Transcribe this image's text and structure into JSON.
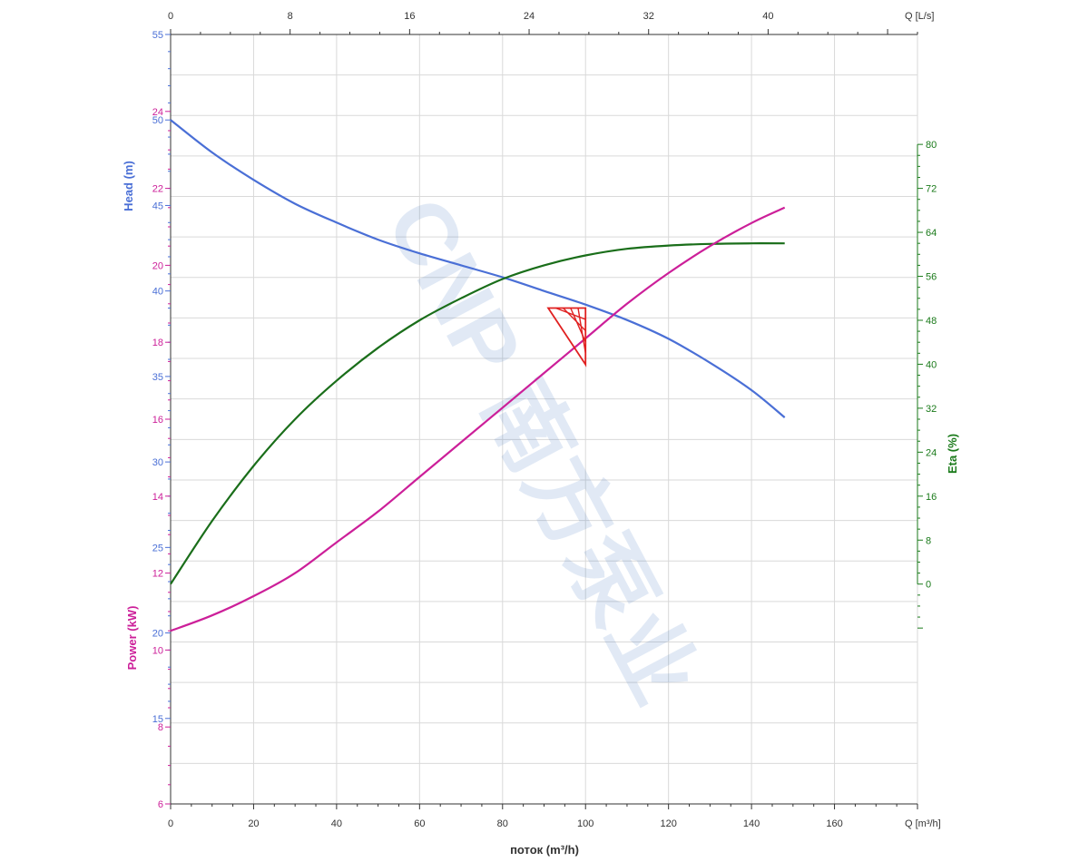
{
  "chart_data": {
    "type": "line",
    "watermark": "CNP 南方泵业",
    "x_axis_bottom": {
      "label": "поток (m³/h)",
      "unit_label": "Q [m³/h]",
      "range": [
        0,
        180
      ],
      "ticks": [
        0,
        20,
        40,
        60,
        80,
        100,
        120,
        140,
        160
      ]
    },
    "x_axis_top": {
      "unit_label": "Q [L/s]",
      "range": [
        0,
        50
      ],
      "ticks": [
        0,
        8,
        16,
        24,
        32,
        40
      ]
    },
    "head_axis": {
      "label": "Head (m)",
      "color": "#4a6fd6",
      "range": [
        10,
        55
      ],
      "ticks": [
        15,
        20,
        25,
        30,
        35,
        40,
        45,
        50,
        55
      ]
    },
    "power_axis": {
      "label": "Power (kW)",
      "color": "#cc1f99",
      "range": [
        6,
        26
      ],
      "ticks": [
        6,
        8,
        10,
        12,
        14,
        16,
        18,
        20,
        22,
        24
      ]
    },
    "eta_axis": {
      "label": "Eta (%)",
      "color": "#1a7a1a",
      "range": [
        -40,
        100
      ],
      "ticks": [
        0,
        8,
        16,
        24,
        32,
        40,
        48,
        56,
        64,
        72,
        80
      ]
    },
    "series": [
      {
        "name": "Head",
        "axis": "head",
        "color": "#4a6fd6",
        "x": [
          0,
          10,
          20,
          30,
          40,
          50,
          60,
          70,
          80,
          90,
          100,
          110,
          120,
          130,
          140,
          148
        ],
        "y": [
          50,
          48.1,
          46.5,
          45.1,
          44,
          43,
          42.2,
          41.5,
          40.8,
          40,
          39.2,
          38.3,
          37.2,
          35.8,
          34.2,
          32.6
        ]
      },
      {
        "name": "Eta",
        "axis": "eta",
        "color": "#1a6e1a",
        "x": [
          0,
          10,
          20,
          30,
          40,
          50,
          60,
          70,
          80,
          90,
          100,
          110,
          120,
          130,
          140,
          148
        ],
        "y": [
          0,
          11.5,
          21.5,
          30,
          37,
          43,
          48,
          52,
          55.5,
          58,
          59.8,
          61,
          61.6,
          61.9,
          62,
          62
        ]
      },
      {
        "name": "Power",
        "axis": "power",
        "color": "#cc1f99",
        "x": [
          0,
          10,
          20,
          30,
          40,
          50,
          60,
          70,
          80,
          90,
          100,
          110,
          120,
          130,
          140,
          148
        ],
        "y": [
          10.5,
          10.9,
          11.4,
          12,
          12.8,
          13.6,
          14.5,
          15.4,
          16.3,
          17.2,
          18.1,
          19,
          19.8,
          20.5,
          21.1,
          21.5
        ]
      }
    ],
    "duty_point": {
      "x": 100,
      "head": 39,
      "head_low": 35.7,
      "x_left": 91,
      "color": "#e02020"
    }
  }
}
